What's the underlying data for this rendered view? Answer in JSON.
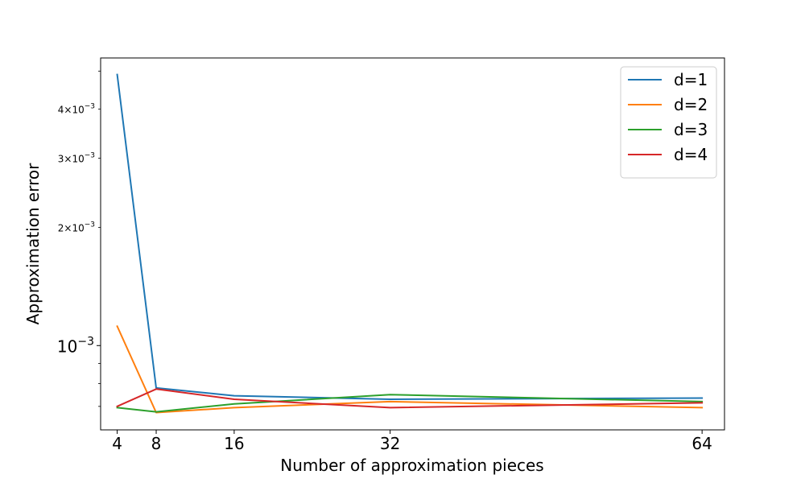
{
  "chart_data": {
    "type": "line",
    "title": "",
    "xlabel": "Number of approximation pieces",
    "ylabel": "Approximation error",
    "x": [
      4,
      8,
      16,
      32,
      64
    ],
    "x_ticks": [
      "4",
      "8",
      "16",
      "32",
      "64"
    ],
    "xlim": [
      2.3,
      66.3
    ],
    "y_scale": "log",
    "ylim": [
      0.00061,
      0.0054
    ],
    "y_major_ticks": [
      {
        "value": 0.001,
        "base": "10",
        "exp": "−3"
      }
    ],
    "y_minor_ticks": [
      {
        "value": 0.002,
        "mantissa": "2",
        "base": "10",
        "exp": "−3"
      },
      {
        "value": 0.003,
        "mantissa": "3",
        "base": "10",
        "exp": "−3"
      },
      {
        "value": 0.004,
        "mantissa": "4",
        "base": "10",
        "exp": "−3"
      }
    ],
    "y_minor_tick_marks": [
      0.0007,
      0.0008,
      0.0009,
      0.005
    ],
    "grid": false,
    "legend_position": "top-right",
    "series": [
      {
        "name": "d=1",
        "color": "#1f77b4",
        "values": [
          0.0049,
          0.00078,
          0.000745,
          0.00073,
          0.000735
        ]
      },
      {
        "name": "d=2",
        "color": "#ff7f0e",
        "values": [
          0.00112,
          0.000675,
          0.000695,
          0.00072,
          0.000695
        ]
      },
      {
        "name": "d=3",
        "color": "#2ca02c",
        "values": [
          0.000695,
          0.000678,
          0.00071,
          0.00075,
          0.00072
        ]
      },
      {
        "name": "d=4",
        "color": "#d62728",
        "values": [
          0.0007,
          0.000775,
          0.00073,
          0.000695,
          0.000715
        ]
      }
    ]
  }
}
